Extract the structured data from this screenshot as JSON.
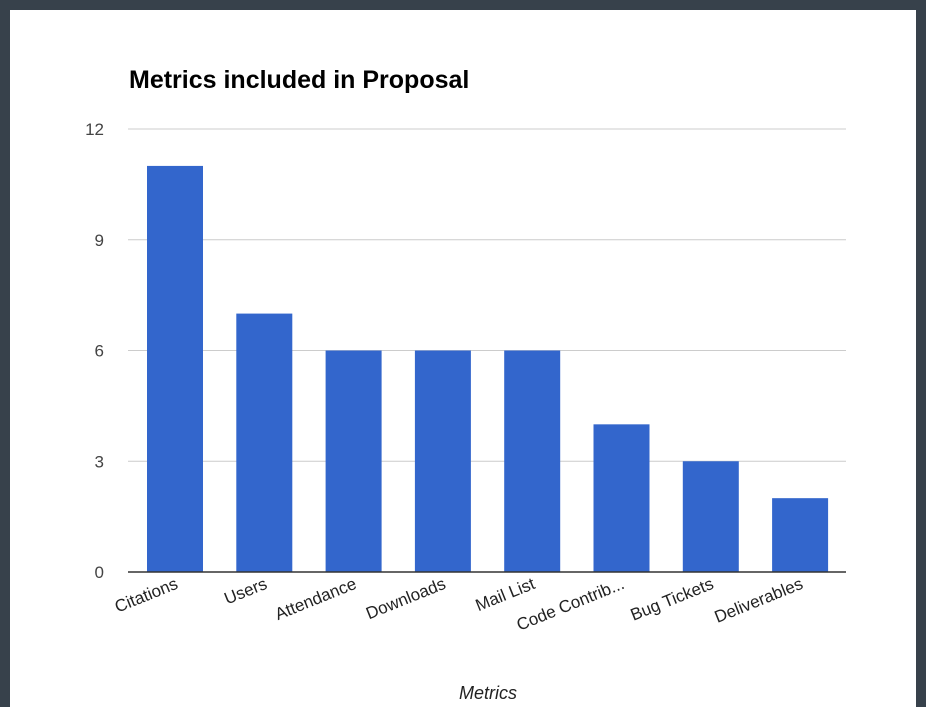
{
  "chart_data": {
    "type": "bar",
    "title": "Metrics included in Proposal",
    "xlabel": "Metrics",
    "ylabel": "",
    "categories": [
      "Citations",
      "Users",
      "Attendance",
      "Downloads",
      "Mail List",
      "Code Contrib...",
      "Bug Tickets",
      "Deliverables"
    ],
    "values": [
      11,
      7,
      6,
      6,
      6,
      4,
      3,
      2
    ],
    "ylim": [
      0,
      12
    ],
    "yticks": [
      0,
      3,
      6,
      9,
      12
    ],
    "grid": true,
    "legend": "none",
    "bar_color": "#3366cc",
    "grid_color": "#cccccc",
    "axis_color": "#333333"
  }
}
